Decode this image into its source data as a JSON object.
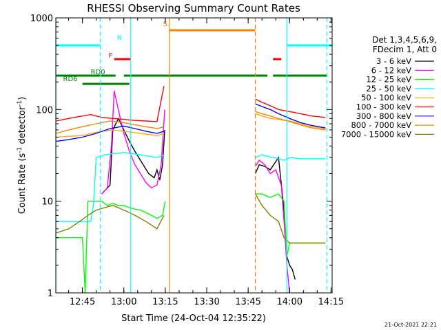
{
  "chart_data": {
    "type": "line",
    "title": "RHESSI Observing Summary Count Rates",
    "xlabel": "Start Time (24-Oct-04 12:35:22)",
    "ylabel_main": "Count Rate (s",
    "ylabel_sup1": "-1",
    "ylabel_mid": " detector",
    "ylabel_sup2": "-1",
    "ylabel_end": ")",
    "yscale": "log",
    "ylim": [
      1,
      1000
    ],
    "xlim_minutes": [
      35.37,
      135.4
    ],
    "y_ticks": [
      {
        "v": 1,
        "label": "1"
      },
      {
        "v": 10,
        "label": "10"
      },
      {
        "v": 100,
        "label": "100"
      },
      {
        "v": 1000,
        "label": "1000"
      }
    ],
    "x_ticks": [
      {
        "m": 45,
        "label": "12:45"
      },
      {
        "m": 60,
        "label": "13:00"
      },
      {
        "m": 75,
        "label": "13:15"
      },
      {
        "m": 90,
        "label": "13:30"
      },
      {
        "m": 105,
        "label": "13:45"
      },
      {
        "m": 120,
        "label": "14:00"
      },
      {
        "m": 135,
        "label": "14:15"
      }
    ],
    "legend_header": [
      "Det 1,3,4,5,6,9,",
      "FDecim 1, Att 0"
    ],
    "series": [
      {
        "name": "3 - 6 keV",
        "color": "#000000",
        "seg1": [
          [
            52,
            12
          ],
          [
            55,
            15
          ],
          [
            56,
            60
          ],
          [
            58,
            80
          ],
          [
            60,
            60
          ],
          [
            62,
            45
          ],
          [
            64,
            35
          ],
          [
            67,
            25
          ],
          [
            69,
            20
          ],
          [
            71,
            18
          ],
          [
            72,
            22
          ],
          [
            73,
            17
          ],
          [
            74,
            25
          ],
          [
            74.8,
            60
          ]
        ],
        "seg2": [
          [
            107.6,
            20
          ],
          [
            109,
            25
          ],
          [
            111,
            24
          ],
          [
            113,
            22
          ],
          [
            116,
            30
          ],
          [
            118,
            8
          ],
          [
            119,
            2.5
          ],
          [
            120,
            2
          ],
          [
            121,
            1.8
          ],
          [
            122,
            1.4
          ]
        ]
      },
      {
        "name": "6 - 12 keV",
        "color": "#ff00ff",
        "seg1": [
          [
            52,
            12
          ],
          [
            54,
            14
          ],
          [
            55.5,
            40
          ],
          [
            56.5,
            160
          ],
          [
            58,
            100
          ],
          [
            60,
            55
          ],
          [
            62,
            35
          ],
          [
            64,
            25
          ],
          [
            66,
            20
          ],
          [
            68,
            16
          ],
          [
            70,
            14
          ],
          [
            72,
            15
          ],
          [
            73.5,
            25
          ],
          [
            74.8,
            100
          ]
        ],
        "seg2": [
          [
            107.6,
            24
          ],
          [
            109,
            28
          ],
          [
            111,
            25
          ],
          [
            113,
            20
          ],
          [
            115,
            22
          ],
          [
            117,
            15
          ],
          [
            118,
            6
          ],
          [
            119,
            2
          ],
          [
            120,
            1
          ]
        ]
      },
      {
        "name": "12 - 25 keV",
        "color": "#00ff00",
        "seg1": [
          [
            35.5,
            4
          ],
          [
            45,
            4
          ],
          [
            46,
            1
          ],
          [
            47,
            10
          ],
          [
            50,
            10
          ],
          [
            52,
            10
          ],
          [
            54,
            9
          ],
          [
            56,
            9.5
          ],
          [
            58,
            9
          ],
          [
            60,
            9
          ],
          [
            62,
            8.5
          ],
          [
            64,
            8.2
          ],
          [
            66,
            8
          ],
          [
            68,
            7.5
          ],
          [
            70,
            7
          ],
          [
            72,
            6.5
          ],
          [
            74,
            7
          ],
          [
            75,
            10
          ]
        ],
        "seg2": [
          [
            107.6,
            12
          ],
          [
            110,
            12
          ],
          [
            113,
            11
          ],
          [
            116,
            12
          ],
          [
            118,
            10
          ],
          [
            119,
            2.5
          ],
          [
            120,
            3.5
          ],
          [
            125,
            3.5
          ],
          [
            129,
            3.5
          ],
          [
            131,
            3.5
          ],
          [
            133,
            3.5
          ]
        ]
      },
      {
        "name": "25 - 50 keV",
        "color": "#00ffff",
        "seg1": [
          [
            35.5,
            6
          ],
          [
            48,
            6
          ],
          [
            49,
            9
          ],
          [
            50,
            30
          ],
          [
            53,
            32
          ],
          [
            56,
            33
          ],
          [
            60,
            34
          ],
          [
            63,
            33
          ],
          [
            66,
            32
          ],
          [
            69,
            31
          ],
          [
            72,
            30
          ],
          [
            74.5,
            32
          ]
        ],
        "seg2": [
          [
            107.6,
            30
          ],
          [
            110,
            32
          ],
          [
            114,
            30
          ],
          [
            118,
            28
          ],
          [
            120,
            30
          ],
          [
            124,
            29
          ],
          [
            128,
            29
          ],
          [
            133,
            29
          ]
        ]
      },
      {
        "name": "50 - 100 keV",
        "color": "#ffaa00",
        "seg1": [
          [
            35.5,
            50
          ],
          [
            40,
            51
          ],
          [
            45,
            52
          ],
          [
            48,
            55
          ],
          [
            52,
            58
          ],
          [
            56,
            60
          ],
          [
            60,
            58
          ],
          [
            64,
            56
          ],
          [
            68,
            54
          ],
          [
            72,
            52
          ],
          [
            74.5,
            55
          ]
        ],
        "seg2": [
          [
            107.6,
            90
          ],
          [
            110,
            85
          ],
          [
            113,
            80
          ],
          [
            116,
            78
          ],
          [
            120,
            75
          ],
          [
            124,
            70
          ],
          [
            128,
            65
          ],
          [
            133,
            62
          ]
        ]
      },
      {
        "name": "100 - 300 keV",
        "color": "#ff0000",
        "seg1": [
          [
            35.5,
            75
          ],
          [
            40,
            80
          ],
          [
            45,
            85
          ],
          [
            48,
            88
          ],
          [
            52,
            82
          ],
          [
            56,
            80
          ],
          [
            60,
            78
          ],
          [
            64,
            76
          ],
          [
            68,
            75
          ],
          [
            72,
            74
          ],
          [
            74.5,
            180
          ]
        ],
        "seg2": [
          [
            107.6,
            130
          ],
          [
            110,
            120
          ],
          [
            113,
            110
          ],
          [
            116,
            100
          ],
          [
            120,
            95
          ],
          [
            124,
            90
          ],
          [
            128,
            85
          ],
          [
            133,
            82
          ]
        ]
      },
      {
        "name": "300 - 800 keV",
        "color": "#0000ff",
        "seg1": [
          [
            35.5,
            45
          ],
          [
            40,
            47
          ],
          [
            45,
            50
          ],
          [
            50,
            55
          ],
          [
            55,
            62
          ],
          [
            60,
            66
          ],
          [
            64,
            62
          ],
          [
            68,
            58
          ],
          [
            72,
            55
          ],
          [
            74.5,
            58
          ]
        ],
        "seg2": [
          [
            107.6,
            115
          ],
          [
            110,
            108
          ],
          [
            113,
            100
          ],
          [
            116,
            90
          ],
          [
            120,
            80
          ],
          [
            124,
            72
          ],
          [
            128,
            67
          ],
          [
            133,
            63
          ]
        ]
      },
      {
        "name": "800 - 7000 keV",
        "color": "#ff8000",
        "seg1": [
          [
            35.5,
            55
          ],
          [
            40,
            60
          ],
          [
            45,
            65
          ],
          [
            50,
            70
          ],
          [
            55,
            75
          ],
          [
            60,
            72
          ],
          [
            64,
            68
          ],
          [
            68,
            65
          ],
          [
            72,
            62
          ],
          [
            74.5,
            65
          ]
        ],
        "seg2": [
          [
            107.6,
            95
          ],
          [
            110,
            90
          ],
          [
            113,
            85
          ],
          [
            116,
            80
          ],
          [
            120,
            74
          ],
          [
            124,
            68
          ],
          [
            128,
            63
          ],
          [
            133,
            60
          ]
        ]
      },
      {
        "name": "7000 - 15000 keV",
        "color": "#808000",
        "seg1": [
          [
            35.5,
            4.5
          ],
          [
            40,
            5
          ],
          [
            44,
            6
          ],
          [
            47,
            7
          ],
          [
            50,
            8
          ],
          [
            53,
            8.5
          ],
          [
            56,
            9
          ],
          [
            58,
            8.5
          ],
          [
            60,
            8
          ],
          [
            62,
            7.5
          ],
          [
            64,
            7
          ],
          [
            66,
            6.5
          ],
          [
            68,
            6
          ],
          [
            70,
            5.5
          ],
          [
            72,
            5
          ],
          [
            74.5,
            7
          ]
        ],
        "seg2": [
          [
            107.6,
            12
          ],
          [
            110,
            9
          ],
          [
            113,
            7
          ],
          [
            116,
            6
          ],
          [
            118,
            4
          ],
          [
            120,
            3.5
          ],
          [
            125,
            3.5
          ],
          [
            129,
            3.5
          ],
          [
            133,
            3.5
          ]
        ]
      }
    ],
    "flags": [
      {
        "label": "N",
        "color": "#00ffff",
        "level": 0.9,
        "spans": [
          [
            35.4,
            51.5
          ],
          [
            119,
            135.4
          ]
        ]
      },
      {
        "label": "F",
        "color": "#ff0000",
        "level": 0.85,
        "spans": [
          [
            56.5,
            62.5
          ],
          [
            114,
            117
          ]
        ]
      },
      {
        "label": "S",
        "color": "#ff8000",
        "level": 0.955,
        "spans": [
          [
            76.5,
            107.6
          ]
        ]
      },
      {
        "label": "RD0",
        "color": "#008000",
        "level": 0.79,
        "spans": [
          [
            35.4,
            57
          ],
          [
            60,
            107.6
          ],
          [
            107.6,
            112
          ],
          [
            114,
            133.5
          ]
        ]
      },
      {
        "label": "RD6",
        "color": "#008000",
        "level": 0.76,
        "spans": [
          [
            45,
            62
          ]
        ]
      }
    ],
    "flag_label_marks": [
      {
        "label": "N",
        "color": "#00ffff",
        "m": 57.5,
        "level": 0.92
      },
      {
        "label": "F",
        "color": "#ff0000",
        "m": 54.5,
        "level": 0.855
      },
      {
        "label": "S",
        "color": "#ff8000",
        "m": 74.2,
        "level": 0.97
      },
      {
        "label": "RD0",
        "color": "#008000",
        "m": 48,
        "level": 0.795
      },
      {
        "label": "RD6",
        "color": "#008000",
        "m": 38,
        "level": 0.77
      }
    ],
    "vlines": [
      {
        "m": 35.4,
        "color": "#00ffff",
        "dash": false
      },
      {
        "m": 51.5,
        "color": "#00ffff",
        "dash": true
      },
      {
        "m": 62.5,
        "color": "#00ffff",
        "dash": false
      },
      {
        "m": 76.5,
        "color": "#ff8000",
        "dash": false
      },
      {
        "m": 107.6,
        "color": "#ff8000",
        "dash": true
      },
      {
        "m": 119,
        "color": "#00ffff",
        "dash": false
      },
      {
        "m": 133.5,
        "color": "#00ffff",
        "dash": true
      }
    ],
    "timestamp": "21-Oct-2021 22:21"
  }
}
